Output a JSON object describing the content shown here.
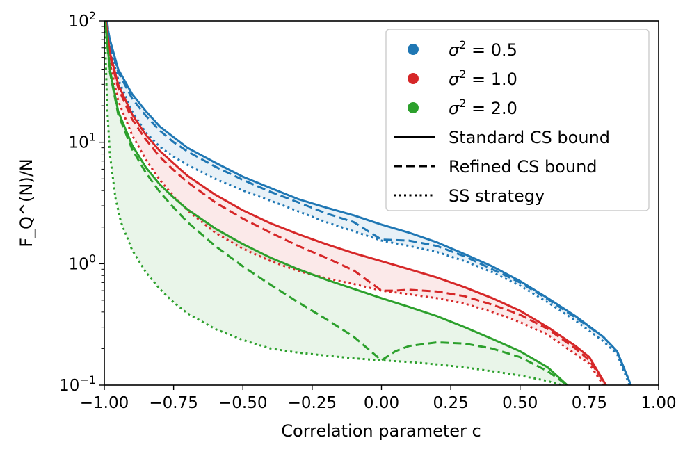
{
  "chart_data": {
    "type": "line",
    "yscale": "log",
    "xlabel": "Correlation parameter c",
    "ylabel": "F_Q^(N)/N",
    "xlim": [
      -1.0,
      1.0
    ],
    "ylim": [
      0.1,
      100
    ],
    "x_ticks": [
      "-1.00",
      "-0.75",
      "-0.50",
      "-0.25",
      "0.00",
      "0.25",
      "0.50",
      "0.75",
      "1.00"
    ],
    "y_ticks": [
      {
        "value": 0.1,
        "base": "10",
        "exp": "-1"
      },
      {
        "value": 1,
        "base": "10",
        "exp": "0"
      },
      {
        "value": 10,
        "base": "10",
        "exp": "1"
      },
      {
        "value": 100,
        "base": "10",
        "exp": "2"
      }
    ],
    "legend": {
      "location": "top-right",
      "entries": [
        {
          "kind": "marker",
          "color": "#1f77b4",
          "sym": "σ",
          "exp": "2",
          "rest": " = 0.5"
        },
        {
          "kind": "marker",
          "color": "#d62728",
          "sym": "σ",
          "exp": "2",
          "rest": " = 1.0"
        },
        {
          "kind": "marker",
          "color": "#2ca02c",
          "sym": "σ",
          "exp": "2",
          "rest": " = 2.0"
        },
        {
          "kind": "line",
          "dash": "solid",
          "label": "Standard CS bound"
        },
        {
          "kind": "line",
          "dash": "dashed",
          "label": "Refined CS bound"
        },
        {
          "kind": "line",
          "dash": "dotted",
          "label": "SS strategy"
        }
      ]
    },
    "series": [
      {
        "name": "Standard CS bound, σ²=0.5",
        "group": "σ²=0.5",
        "style": "solid",
        "color": "#1f77b4",
        "points": [
          [
            -0.993,
            100
          ],
          [
            -0.98,
            70
          ],
          [
            -0.95,
            40
          ],
          [
            -0.9,
            25
          ],
          [
            -0.85,
            18
          ],
          [
            -0.8,
            13.5
          ],
          [
            -0.75,
            11
          ],
          [
            -0.7,
            9
          ],
          [
            -0.6,
            6.8
          ],
          [
            -0.5,
            5.2
          ],
          [
            -0.4,
            4.2
          ],
          [
            -0.3,
            3.4
          ],
          [
            -0.2,
            2.9
          ],
          [
            -0.1,
            2.5
          ],
          [
            0.0,
            2.1
          ],
          [
            0.1,
            1.8
          ],
          [
            0.2,
            1.5
          ],
          [
            0.3,
            1.2
          ],
          [
            0.4,
            0.95
          ],
          [
            0.5,
            0.72
          ],
          [
            0.6,
            0.52
          ],
          [
            0.7,
            0.37
          ],
          [
            0.8,
            0.25
          ],
          [
            0.85,
            0.19
          ],
          [
            0.9,
            0.1
          ]
        ]
      },
      {
        "name": "Refined CS bound, σ²=0.5",
        "group": "σ²=0.5",
        "style": "dashed",
        "color": "#1f77b4",
        "points": [
          [
            -0.99,
            100
          ],
          [
            -0.98,
            65
          ],
          [
            -0.95,
            38
          ],
          [
            -0.9,
            23
          ],
          [
            -0.85,
            16.5
          ],
          [
            -0.8,
            12.5
          ],
          [
            -0.75,
            10
          ],
          [
            -0.7,
            8.4
          ],
          [
            -0.6,
            6.3
          ],
          [
            -0.5,
            4.9
          ],
          [
            -0.4,
            3.9
          ],
          [
            -0.3,
            3.2
          ],
          [
            -0.2,
            2.6
          ],
          [
            -0.1,
            2.2
          ],
          [
            0.0,
            1.58
          ],
          [
            0.1,
            1.55
          ],
          [
            0.2,
            1.4
          ],
          [
            0.3,
            1.15
          ],
          [
            0.4,
            0.9
          ],
          [
            0.5,
            0.7
          ],
          [
            0.6,
            0.51
          ],
          [
            0.7,
            0.36
          ],
          [
            0.8,
            0.25
          ],
          [
            0.85,
            0.19
          ],
          [
            0.9,
            0.1
          ]
        ]
      },
      {
        "name": "SS strategy, σ²=0.5",
        "group": "σ²=0.5",
        "style": "dotted",
        "color": "#1f77b4",
        "points": [
          [
            -0.99,
            100
          ],
          [
            -0.98,
            60
          ],
          [
            -0.95,
            33
          ],
          [
            -0.9,
            18
          ],
          [
            -0.85,
            12
          ],
          [
            -0.8,
            9.2
          ],
          [
            -0.75,
            7.6
          ],
          [
            -0.7,
            6.5
          ],
          [
            -0.6,
            5.0
          ],
          [
            -0.5,
            4.0
          ],
          [
            -0.4,
            3.3
          ],
          [
            -0.3,
            2.7
          ],
          [
            -0.2,
            2.2
          ],
          [
            -0.1,
            1.85
          ],
          [
            0.0,
            1.55
          ],
          [
            0.1,
            1.4
          ],
          [
            0.2,
            1.25
          ],
          [
            0.3,
            1.05
          ],
          [
            0.4,
            0.85
          ],
          [
            0.5,
            0.66
          ],
          [
            0.6,
            0.48
          ],
          [
            0.7,
            0.34
          ],
          [
            0.8,
            0.23
          ],
          [
            0.85,
            0.18
          ],
          [
            0.895,
            0.1
          ]
        ]
      },
      {
        "name": "Standard CS bound, σ²=1.0",
        "group": "σ²=1.0",
        "style": "solid",
        "color": "#d62728",
        "points": [
          [
            -0.995,
            100
          ],
          [
            -0.98,
            55
          ],
          [
            -0.95,
            30
          ],
          [
            -0.9,
            17
          ],
          [
            -0.85,
            11.5
          ],
          [
            -0.8,
            8.5
          ],
          [
            -0.75,
            6.7
          ],
          [
            -0.7,
            5.3
          ],
          [
            -0.6,
            3.7
          ],
          [
            -0.5,
            2.75
          ],
          [
            -0.4,
            2.15
          ],
          [
            -0.3,
            1.75
          ],
          [
            -0.2,
            1.45
          ],
          [
            -0.1,
            1.22
          ],
          [
            0.0,
            1.05
          ],
          [
            0.1,
            0.9
          ],
          [
            0.2,
            0.77
          ],
          [
            0.3,
            0.64
          ],
          [
            0.4,
            0.52
          ],
          [
            0.5,
            0.41
          ],
          [
            0.6,
            0.3
          ],
          [
            0.7,
            0.21
          ],
          [
            0.75,
            0.17
          ],
          [
            0.81,
            0.1
          ]
        ]
      },
      {
        "name": "Refined CS bound, σ²=1.0",
        "group": "σ²=1.0",
        "style": "dashed",
        "color": "#d62728",
        "points": [
          [
            -0.995,
            100
          ],
          [
            -0.98,
            52
          ],
          [
            -0.95,
            28
          ],
          [
            -0.9,
            15.5
          ],
          [
            -0.85,
            10.5
          ],
          [
            -0.8,
            7.6
          ],
          [
            -0.75,
            5.9
          ],
          [
            -0.7,
            4.7
          ],
          [
            -0.6,
            3.2
          ],
          [
            -0.5,
            2.35
          ],
          [
            -0.4,
            1.8
          ],
          [
            -0.3,
            1.4
          ],
          [
            -0.2,
            1.12
          ],
          [
            -0.1,
            0.88
          ],
          [
            0.0,
            0.6
          ],
          [
            0.05,
            0.6
          ],
          [
            0.1,
            0.61
          ],
          [
            0.2,
            0.59
          ],
          [
            0.3,
            0.54
          ],
          [
            0.4,
            0.46
          ],
          [
            0.5,
            0.38
          ],
          [
            0.6,
            0.29
          ],
          [
            0.7,
            0.2
          ],
          [
            0.75,
            0.16
          ],
          [
            0.81,
            0.1
          ]
        ]
      },
      {
        "name": "SS strategy, σ²=1.0",
        "group": "σ²=1.0",
        "style": "dotted",
        "color": "#d62728",
        "points": [
          [
            -0.995,
            100
          ],
          [
            -0.98,
            45
          ],
          [
            -0.95,
            22
          ],
          [
            -0.9,
            11.5
          ],
          [
            -0.85,
            7.2
          ],
          [
            -0.8,
            4.9
          ],
          [
            -0.75,
            3.6
          ],
          [
            -0.7,
            2.75
          ],
          [
            -0.6,
            1.8
          ],
          [
            -0.5,
            1.33
          ],
          [
            -0.4,
            1.05
          ],
          [
            -0.3,
            0.87
          ],
          [
            -0.2,
            0.76
          ],
          [
            -0.1,
            0.68
          ],
          [
            0.0,
            0.6
          ],
          [
            0.1,
            0.56
          ],
          [
            0.2,
            0.52
          ],
          [
            0.3,
            0.47
          ],
          [
            0.4,
            0.4
          ],
          [
            0.5,
            0.33
          ],
          [
            0.6,
            0.26
          ],
          [
            0.7,
            0.18
          ],
          [
            0.75,
            0.15
          ],
          [
            0.8,
            0.1
          ]
        ]
      },
      {
        "name": "Standard CS bound, σ²=2.0",
        "group": "σ²=2.0",
        "style": "solid",
        "color": "#2ca02c",
        "points": [
          [
            -0.997,
            100
          ],
          [
            -0.98,
            40
          ],
          [
            -0.95,
            18
          ],
          [
            -0.9,
            9.5
          ],
          [
            -0.85,
            6.2
          ],
          [
            -0.8,
            4.5
          ],
          [
            -0.75,
            3.5
          ],
          [
            -0.7,
            2.8
          ],
          [
            -0.6,
            1.95
          ],
          [
            -0.5,
            1.45
          ],
          [
            -0.4,
            1.12
          ],
          [
            -0.3,
            0.9
          ],
          [
            -0.2,
            0.74
          ],
          [
            -0.1,
            0.62
          ],
          [
            0.0,
            0.52
          ],
          [
            0.1,
            0.44
          ],
          [
            0.2,
            0.37
          ],
          [
            0.3,
            0.3
          ],
          [
            0.4,
            0.24
          ],
          [
            0.5,
            0.19
          ],
          [
            0.6,
            0.14
          ],
          [
            0.67,
            0.1
          ]
        ]
      },
      {
        "name": "Refined CS bound, σ²=2.0",
        "group": "σ²=2.0",
        "style": "dashed",
        "color": "#2ca02c",
        "points": [
          [
            -0.997,
            100
          ],
          [
            -0.98,
            38
          ],
          [
            -0.95,
            17
          ],
          [
            -0.9,
            8.8
          ],
          [
            -0.85,
            5.6
          ],
          [
            -0.8,
            3.9
          ],
          [
            -0.75,
            2.9
          ],
          [
            -0.7,
            2.2
          ],
          [
            -0.6,
            1.4
          ],
          [
            -0.5,
            0.95
          ],
          [
            -0.4,
            0.67
          ],
          [
            -0.3,
            0.48
          ],
          [
            -0.2,
            0.35
          ],
          [
            -0.1,
            0.25
          ],
          [
            -0.05,
            0.2
          ],
          [
            0.0,
            0.16
          ],
          [
            0.05,
            0.19
          ],
          [
            0.1,
            0.21
          ],
          [
            0.2,
            0.225
          ],
          [
            0.3,
            0.22
          ],
          [
            0.4,
            0.2
          ],
          [
            0.5,
            0.17
          ],
          [
            0.6,
            0.13
          ],
          [
            0.67,
            0.1
          ]
        ]
      },
      {
        "name": "SS strategy, σ²=2.0",
        "group": "σ²=2.0",
        "style": "dotted",
        "color": "#2ca02c",
        "points": [
          [
            -0.998,
            100
          ],
          [
            -0.995,
            50
          ],
          [
            -0.99,
            20
          ],
          [
            -0.98,
            8
          ],
          [
            -0.96,
            3.5
          ],
          [
            -0.94,
            2.2
          ],
          [
            -0.9,
            1.3
          ],
          [
            -0.85,
            0.85
          ],
          [
            -0.8,
            0.62
          ],
          [
            -0.75,
            0.48
          ],
          [
            -0.7,
            0.39
          ],
          [
            -0.6,
            0.29
          ],
          [
            -0.5,
            0.235
          ],
          [
            -0.4,
            0.2
          ],
          [
            -0.3,
            0.185
          ],
          [
            -0.2,
            0.175
          ],
          [
            -0.1,
            0.166
          ],
          [
            0.0,
            0.16
          ],
          [
            0.1,
            0.155
          ],
          [
            0.2,
            0.148
          ],
          [
            0.3,
            0.14
          ],
          [
            0.4,
            0.13
          ],
          [
            0.5,
            0.12
          ],
          [
            0.6,
            0.108
          ],
          [
            0.65,
            0.1
          ]
        ]
      }
    ],
    "shaded_regions": [
      {
        "group": "σ²=0.5",
        "color": "#1f77b4",
        "between": [
          "Standard CS bound, σ²=0.5",
          "SS strategy, σ²=0.5"
        ]
      },
      {
        "group": "σ²=1.0",
        "color": "#d62728",
        "between": [
          "Standard CS bound, σ²=1.0",
          "SS strategy, σ²=1.0"
        ]
      },
      {
        "group": "σ²=2.0",
        "color": "#2ca02c",
        "between": [
          "Standard CS bound, σ²=2.0",
          "SS strategy, σ²=2.0"
        ]
      }
    ]
  }
}
